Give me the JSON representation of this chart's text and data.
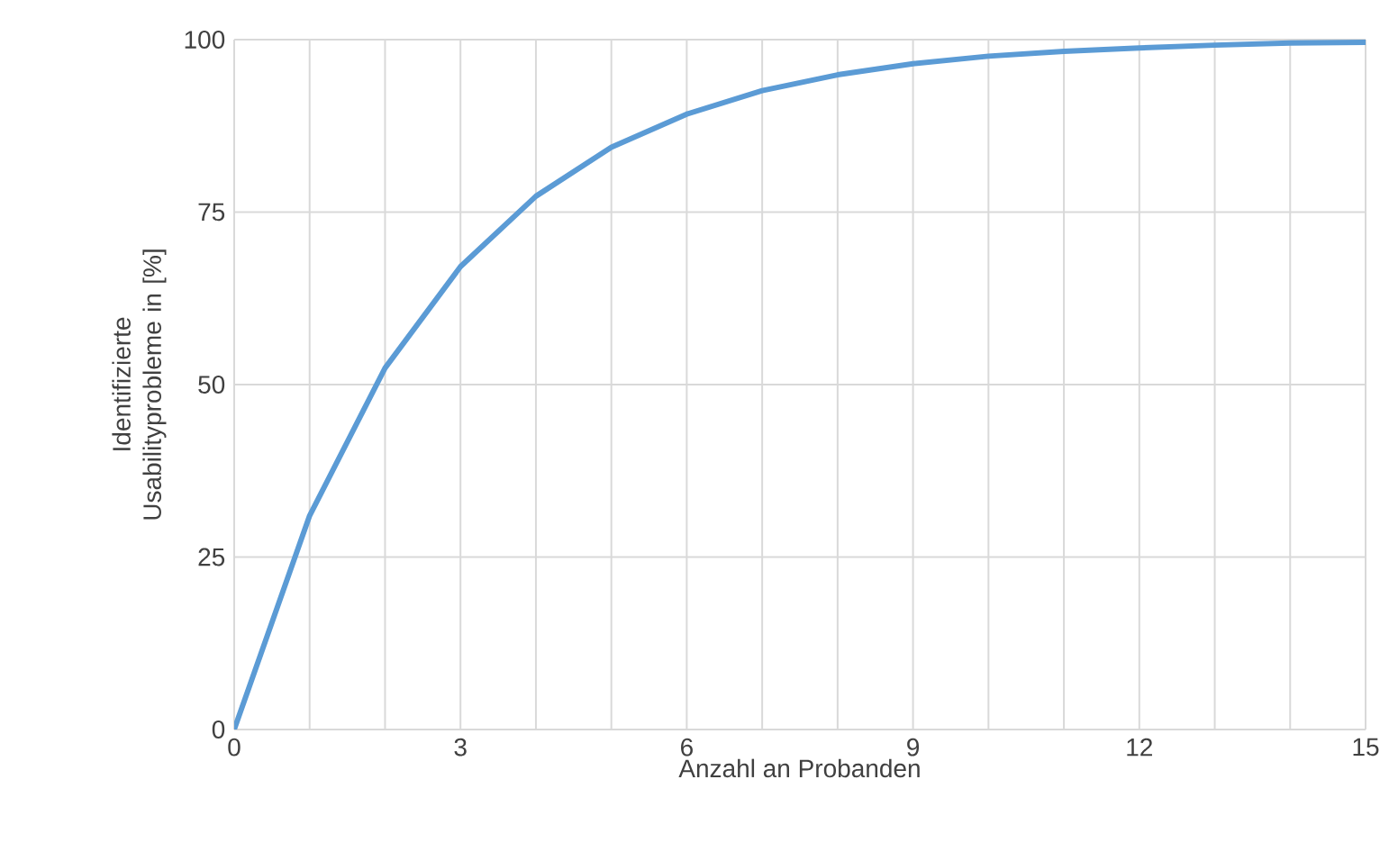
{
  "chart_data": {
    "type": "line",
    "xlabel": "Anzahl an Probanden",
    "ylabel": "Identifizierte Usabilityprobleme in [%]",
    "x": [
      0,
      1,
      2,
      3,
      4,
      5,
      6,
      7,
      8,
      9,
      10,
      11,
      12,
      13,
      14,
      15
    ],
    "series": [
      {
        "color": "#5b9bd5",
        "values": [
          0,
          31,
          52.4,
          67.1,
          77.3,
          84.4,
          89.2,
          92.6,
          94.9,
          96.5,
          97.6,
          98.3,
          98.8,
          99.2,
          99.5,
          99.6
        ]
      }
    ],
    "xlim": [
      0,
      15
    ],
    "ylim": [
      0,
      100
    ],
    "xticks": [
      0,
      {
        "value": 1,
        "label": null
      },
      {
        "value": 2,
        "label": null
      },
      3,
      {
        "value": 4,
        "label": null
      },
      {
        "value": 5,
        "label": null
      },
      6,
      {
        "value": 7,
        "label": null
      },
      {
        "value": 8,
        "label": null
      },
      9,
      {
        "value": 10,
        "label": null
      },
      {
        "value": 11,
        "label": null
      },
      12,
      {
        "value": 13,
        "label": null
      },
      {
        "value": 14,
        "label": null
      },
      15
    ],
    "yticks": [
      0,
      25,
      50,
      75,
      100
    ],
    "grid": true,
    "marker": "none",
    "line_style": "solid"
  }
}
